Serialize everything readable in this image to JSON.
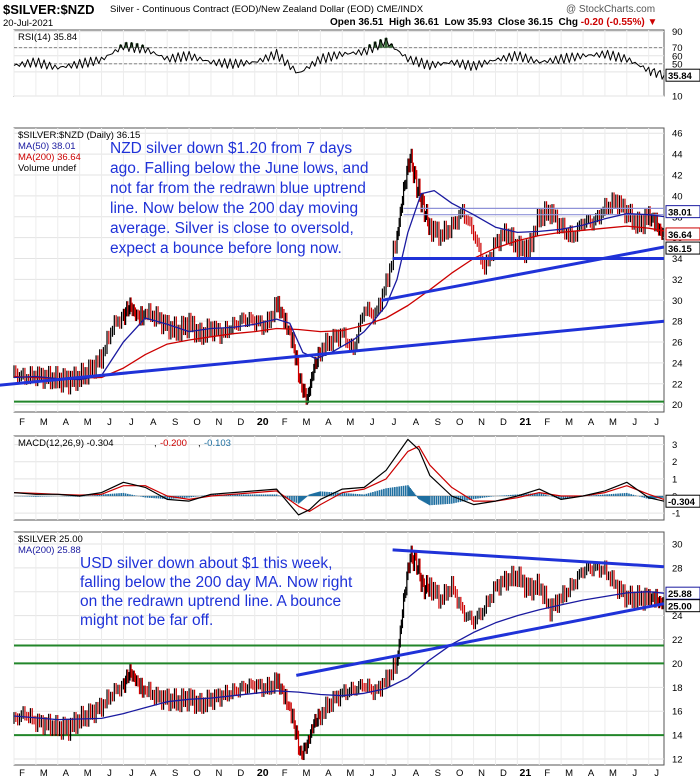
{
  "header": {
    "symbol": "$SILVER:$NZD",
    "description": "Silver - Continuous Contract (EOD)/New Zealand Dollar (EOD) CME/INDX",
    "date": "20-Jul-2021",
    "watermark": "@ StockCharts.com",
    "ohlc": {
      "open_label": "Open",
      "open": "36.51",
      "high_label": "High",
      "high": "36.61",
      "low_label": "Low",
      "low": "35.93",
      "close_label": "Close",
      "close": "36.15",
      "chg_label": "Chg",
      "chg": "-0.20 (-0.55%)"
    }
  },
  "x_axis": {
    "months": [
      "F",
      "M",
      "A",
      "M",
      "J",
      "J",
      "A",
      "S",
      "O",
      "N",
      "D",
      "20",
      "F",
      "M",
      "A",
      "M",
      "J",
      "J",
      "A",
      "S",
      "O",
      "N",
      "D",
      "21",
      "F",
      "M",
      "A",
      "M",
      "J",
      "J"
    ],
    "bold_labels": [
      "20",
      "21"
    ]
  },
  "colors": {
    "price": "#000000",
    "up": "#cc0000",
    "ma50": "#1a1aa0",
    "ma200": "#cc0000",
    "trend": "#1f32d8",
    "support": "#22862a",
    "rsi_fill": "#3a6a3a",
    "macd_hist": "#1f6fa0",
    "annotation": "#1f32d8"
  },
  "chart_data": [
    {
      "type": "line",
      "panel": "RSI",
      "legend": "RSI(14) 35.84",
      "y_ticks": [
        90,
        70,
        60,
        50,
        40,
        10
      ],
      "ylim": [
        10,
        92
      ],
      "last_value_label": "35.84",
      "x_months": [
        0,
        1,
        2,
        3,
        4,
        5,
        6,
        7,
        8,
        9,
        10,
        11,
        12,
        13,
        14,
        15,
        16,
        17,
        18,
        19,
        20,
        21,
        22,
        23,
        24,
        25,
        26,
        27,
        28,
        29,
        29.7
      ],
      "values": [
        48,
        52,
        45,
        50,
        55,
        72,
        68,
        56,
        60,
        52,
        50,
        52,
        62,
        38,
        56,
        62,
        65,
        78,
        56,
        48,
        52,
        47,
        55,
        60,
        52,
        56,
        60,
        62,
        56,
        42,
        35.84
      ]
    },
    {
      "type": "line",
      "panel": "main",
      "legend": [
        "$SILVER:$NZD (Daily) 36.15",
        "MA(50) 38.01",
        "MA(200) 36.64",
        "Volume undef"
      ],
      "y_ticks": [
        20,
        22,
        24,
        26,
        28,
        30,
        32,
        34,
        36,
        38,
        40,
        42,
        44,
        46
      ],
      "ylim": [
        19.3,
        46.5
      ],
      "last_labels": [
        "38.01",
        "36.64",
        "36.15"
      ],
      "annotation": "NZD silver down $1.20 from 7 days ago. Falling below the June lows, and not far from the redrawn blue uptrend line. Now below the 200 day moving average. Silver is close to oversold, expect a bounce before long now.",
      "series": [
        {
          "role": "price",
          "x": [
            0,
            0.5,
            1,
            1.5,
            2,
            2.5,
            3,
            3.5,
            4,
            4.5,
            5,
            5.3,
            5.6,
            6,
            6.5,
            7,
            7.5,
            8,
            8.5,
            9,
            9.5,
            10,
            10.5,
            11,
            11.5,
            12,
            12.4,
            12.8,
            13.1,
            13.4,
            13.7,
            14,
            14.5,
            15,
            15.5,
            16,
            16.5,
            17,
            17.5,
            17.8,
            18.1,
            18.4,
            18.7,
            19,
            19.5,
            20,
            20.5,
            21,
            21.5,
            22,
            22.5,
            23,
            23.5,
            24,
            24.5,
            25,
            25.5,
            26,
            26.5,
            27,
            27.5,
            28,
            28.5,
            29,
            29.4,
            29.7
          ],
          "values": [
            23,
            22.6,
            22.8,
            22.6,
            22.4,
            22.3,
            22.6,
            23.3,
            24.5,
            27.5,
            28.5,
            29.5,
            28.5,
            28.8,
            28.4,
            27.5,
            27,
            27.8,
            26.6,
            27.3,
            26.8,
            27.5,
            28.2,
            28,
            27.5,
            29.5,
            27.5,
            25.5,
            22,
            20.5,
            23.5,
            25.2,
            26.2,
            26.8,
            25.2,
            29.2,
            28.5,
            31.5,
            36,
            40.5,
            43.8,
            41,
            39,
            37,
            36.2,
            37,
            38.5,
            36.5,
            33,
            35.5,
            36.5,
            35,
            34.8,
            38,
            38.5,
            37,
            36,
            37.5,
            37.5,
            38.8,
            39.5,
            38.4,
            37.2,
            38,
            37,
            36.15
          ]
        },
        {
          "role": "ma50",
          "x": [
            0,
            1,
            2,
            3,
            4,
            5,
            6,
            7,
            8,
            9,
            10,
            11,
            12,
            12.6,
            13.2,
            13.8,
            14.5,
            15,
            15.5,
            16,
            16.5,
            17,
            17.5,
            18,
            18.6,
            19.2,
            20,
            21,
            22,
            23,
            24,
            25,
            26,
            27,
            28,
            29,
            29.7
          ],
          "values": [
            22.6,
            22.7,
            22.5,
            22.4,
            22.8,
            26,
            28.3,
            27.7,
            27,
            27.3,
            27.4,
            27.7,
            28.2,
            27.8,
            25,
            24.4,
            25,
            25.6,
            26.2,
            27,
            28.2,
            29.5,
            32,
            36.5,
            40.2,
            40.5,
            39.3,
            38.2,
            37,
            36.5,
            36.6,
            36.8,
            37.2,
            37.8,
            38.3,
            38.2,
            38.01
          ]
        },
        {
          "role": "ma200",
          "x": [
            0,
            2,
            4,
            5,
            6,
            7,
            8,
            9,
            10,
            11,
            12,
            13,
            14,
            15,
            16,
            17,
            18,
            19,
            20,
            21,
            22,
            23,
            24,
            25,
            26,
            27,
            28,
            29,
            29.7
          ],
          "values": [
            22.7,
            22.5,
            22.6,
            23.5,
            24.8,
            25.8,
            26.2,
            26.5,
            26.8,
            27,
            27.3,
            27.2,
            27,
            27.1,
            27.6,
            28.3,
            29.5,
            31,
            32.6,
            34,
            35,
            35.7,
            36.2,
            36.5,
            36.7,
            36.9,
            37.1,
            36.9,
            36.64
          ]
        },
        {
          "role": "resistance",
          "x": [
            17.8,
            29.7
          ],
          "values": [
            38.8,
            38.8
          ]
        },
        {
          "role": "resistance",
          "x": [
            17.8,
            29.7
          ],
          "values": [
            38.2,
            38.2
          ]
        }
      ],
      "trend_lines": [
        {
          "x": [
            -2,
            29.7
          ],
          "values": [
            21.6,
            28
          ]
        },
        {
          "x": [
            16.8,
            29.7
          ],
          "values": [
            30,
            35.1
          ]
        },
        {
          "x": [
            17.3,
            29.7
          ],
          "values": [
            34,
            34
          ]
        }
      ],
      "support_line": {
        "x": [
          0,
          29.7
        ],
        "value": 20.3
      }
    },
    {
      "type": "line",
      "panel": "MACD",
      "legend": [
        "MACD(12,26,9) -0.304",
        "-0.200",
        "-0.103"
      ],
      "y_ticks": [
        3,
        2,
        1,
        0,
        -1
      ],
      "ylim": [
        -1.4,
        3.5
      ],
      "last_value_label": "-0.304",
      "x_months": [
        0,
        1,
        2,
        3,
        4,
        5,
        6,
        7,
        8,
        9,
        10,
        11,
        12,
        13,
        13.5,
        14,
        15,
        16,
        17,
        18,
        18.5,
        19,
        20,
        21,
        22,
        23,
        24,
        25,
        26,
        27,
        28,
        29,
        29.7
      ],
      "macd": [
        0.2,
        0.1,
        0.1,
        0,
        0.2,
        0.8,
        0.5,
        -0.2,
        -0.3,
        0.1,
        0.2,
        0.3,
        0.4,
        -1.1,
        -0.8,
        -0.2,
        0.4,
        0.5,
        1.5,
        3.3,
        2.7,
        1.2,
        0,
        -0.5,
        -0.3,
        0,
        0.4,
        -0.2,
        0,
        0.3,
        0.8,
        -0.1,
        -0.304
      ],
      "signal": [
        0.2,
        0.15,
        0.1,
        0.05,
        0.1,
        0.6,
        0.6,
        0,
        -0.2,
        0,
        0.1,
        0.2,
        0.3,
        -0.6,
        -0.9,
        -0.5,
        0.2,
        0.4,
        1,
        2.6,
        2.9,
        1.8,
        0.5,
        -0.3,
        -0.3,
        -0.1,
        0.2,
        0,
        0,
        0.2,
        0.6,
        0.1,
        -0.2
      ]
    },
    {
      "type": "line",
      "panel": "USD",
      "legend": [
        "$SILVER 25.00",
        "MA(200) 25.88"
      ],
      "y_ticks": [
        12,
        14,
        16,
        18,
        20,
        22,
        24,
        26,
        28,
        30
      ],
      "ylim": [
        11.5,
        31
      ],
      "last_labels": [
        "25.88",
        "25.00"
      ],
      "annotation": "USD silver down about $1 this week, falling below the 200 day MA. Now right on the redrawn uptrend line. A bounce might not be far off.",
      "series": [
        {
          "role": "price",
          "x": [
            0,
            0.5,
            1,
            1.5,
            2,
            2.5,
            3,
            3.5,
            4,
            4.5,
            5,
            5.3,
            5.6,
            6,
            6.5,
            7,
            7.5,
            8,
            8.5,
            9,
            9.5,
            10,
            10.5,
            11,
            11.5,
            12,
            12.4,
            12.8,
            13.1,
            13.4,
            13.7,
            14,
            14.5,
            15,
            15.5,
            16,
            16.5,
            17,
            17.5,
            17.8,
            18.1,
            18.4,
            18.7,
            19,
            19.5,
            20,
            20.5,
            21,
            21.5,
            22,
            22.5,
            23,
            23.5,
            24,
            24.5,
            25,
            25.5,
            26,
            26.5,
            27,
            27.5,
            28,
            28.5,
            29,
            29.4,
            29.7
          ],
          "values": [
            15.3,
            15.8,
            15.1,
            14.9,
            14.6,
            14.6,
            15.3,
            15.8,
            16.4,
            17.5,
            18.2,
            19.3,
            18.5,
            17.8,
            17.2,
            17,
            16.8,
            17.1,
            16.5,
            17,
            17.3,
            17.6,
            18,
            18.2,
            17.9,
            18.4,
            16.8,
            15,
            12.3,
            13.2,
            15,
            15.7,
            16.8,
            17.5,
            17.8,
            18.2,
            17.6,
            18.6,
            20,
            25.2,
            29,
            28.4,
            26.3,
            26.5,
            25.3,
            26.5,
            24.3,
            23.5,
            24.6,
            26.4,
            27,
            27.3,
            26.2,
            26.5,
            24.5,
            25.5,
            26.5,
            27.8,
            28,
            27.8,
            26.5,
            25.5,
            25.5,
            25.4,
            25.2,
            25
          ]
        },
        {
          "role": "ma200",
          "x": [
            0,
            2,
            4,
            5,
            6,
            7,
            8,
            9,
            10,
            11,
            12,
            13,
            14,
            15,
            16,
            17,
            18,
            19,
            20,
            21,
            22,
            23,
            24,
            25,
            26,
            27,
            28,
            29,
            29.7
          ],
          "values": [
            15.6,
            15.3,
            15.4,
            15.8,
            16.3,
            16.8,
            17,
            17.1,
            17.3,
            17.5,
            17.7,
            17.6,
            17.4,
            17.3,
            17.5,
            17.9,
            18.8,
            20.3,
            21.6,
            22.6,
            23.4,
            24,
            24.5,
            24.9,
            25.3,
            25.6,
            25.9,
            26,
            25.88
          ]
        }
      ],
      "trend_lines": [
        {
          "x": [
            17.3,
            29.7
          ],
          "values": [
            29.5,
            28.1
          ]
        },
        {
          "x": [
            12.9,
            29.7
          ],
          "values": [
            19,
            25
          ]
        }
      ],
      "support_lines": [
        21.5,
        20,
        14
      ]
    }
  ]
}
